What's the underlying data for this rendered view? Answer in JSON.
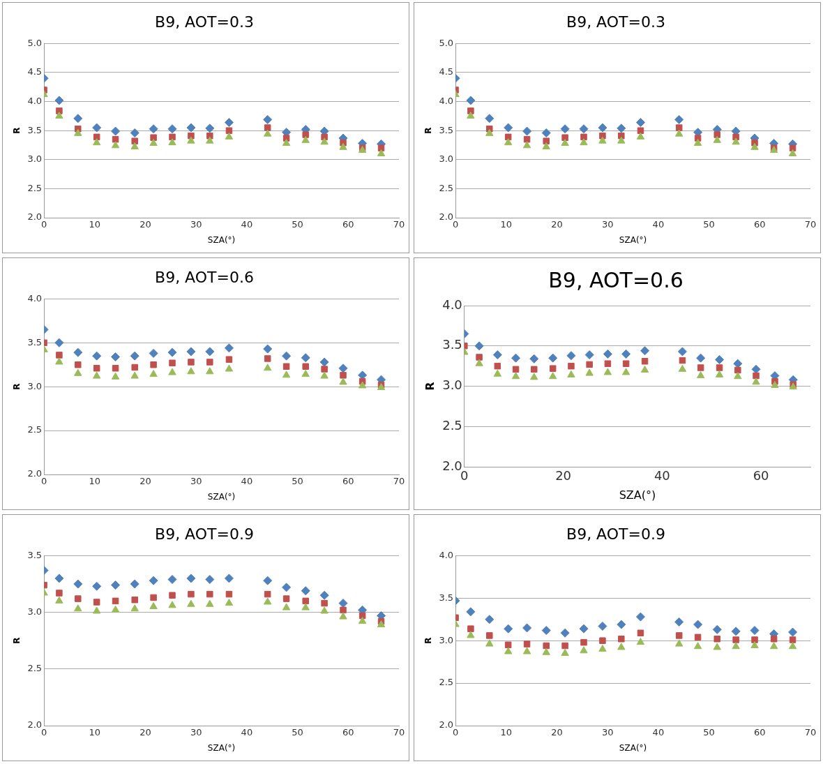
{
  "chart_data": [
    {
      "type": "scatter",
      "title": "B9, AOT=0.3",
      "xlabel": "SZA(°)",
      "ylabel": "R",
      "x": [
        0,
        3,
        6.7,
        10.4,
        14.1,
        17.9,
        21.6,
        25.3,
        29,
        32.7,
        36.5,
        44.1,
        47.8,
        51.6,
        55.3,
        59,
        62.8,
        66.5
      ],
      "xlim": [
        0,
        70
      ],
      "xticks": [
        0,
        10,
        20,
        30,
        40,
        50,
        60,
        70
      ],
      "ylim": [
        2,
        5
      ],
      "yticks": [
        {
          "value": 2,
          "label": "2.0"
        },
        {
          "value": 2.5,
          "label": "2.5"
        },
        {
          "value": 3,
          "label": "3.0"
        },
        {
          "value": 3.5,
          "label": "3.5"
        },
        {
          "value": 4,
          "label": "4.0"
        },
        {
          "value": 4.5,
          "label": "4.5"
        },
        {
          "value": 5,
          "label": "5.0"
        }
      ],
      "grid": "y",
      "legend": false,
      "series": [
        {
          "color": "#4f81bd",
          "marker": "diamond",
          "values": [
            4.4,
            4.02,
            3.71,
            3.55,
            3.49,
            3.46,
            3.53,
            3.53,
            3.55,
            3.54,
            3.64,
            3.69,
            3.47,
            3.52,
            3.49,
            3.37,
            3.28,
            3.27
          ]
        },
        {
          "color": "#c0504d",
          "marker": "square",
          "values": [
            4.2,
            3.84,
            3.53,
            3.39,
            3.35,
            3.32,
            3.38,
            3.39,
            3.41,
            3.41,
            3.5,
            3.55,
            3.37,
            3.43,
            3.39,
            3.29,
            3.2,
            3.2
          ]
        },
        {
          "color": "#9bbb59",
          "marker": "triangle",
          "values": [
            4.12,
            3.75,
            3.45,
            3.29,
            3.24,
            3.22,
            3.28,
            3.29,
            3.32,
            3.32,
            3.39,
            3.44,
            3.28,
            3.33,
            3.3,
            3.21,
            3.16,
            3.1
          ]
        }
      ]
    },
    {
      "type": "scatter",
      "title": "B9, AOT=0.3",
      "xlabel": "SZA(°)",
      "ylabel": "R",
      "x": [
        0,
        3,
        6.7,
        10.4,
        14.1,
        17.9,
        21.6,
        25.3,
        29,
        32.7,
        36.5,
        44.1,
        47.8,
        51.6,
        55.3,
        59,
        62.8,
        66.5
      ],
      "xlim": [
        0,
        70
      ],
      "xticks": [
        0,
        10,
        20,
        30,
        40,
        50,
        60,
        70
      ],
      "ylim": [
        2,
        5
      ],
      "yticks": [
        {
          "value": 2,
          "label": "2.0"
        },
        {
          "value": 2.5,
          "label": "2.5"
        },
        {
          "value": 3,
          "label": "3.0"
        },
        {
          "value": 3.5,
          "label": "3.5"
        },
        {
          "value": 4,
          "label": "4.0"
        },
        {
          "value": 4.5,
          "label": "4.5"
        },
        {
          "value": 5,
          "label": "5.0"
        }
      ],
      "grid": "y",
      "legend": false,
      "series": [
        {
          "color": "#4f81bd",
          "marker": "diamond",
          "values": [
            4.4,
            4.02,
            3.71,
            3.55,
            3.49,
            3.46,
            3.53,
            3.53,
            3.55,
            3.54,
            3.64,
            3.69,
            3.47,
            3.52,
            3.49,
            3.37,
            3.28,
            3.27
          ]
        },
        {
          "color": "#c0504d",
          "marker": "square",
          "values": [
            4.2,
            3.84,
            3.53,
            3.39,
            3.35,
            3.32,
            3.38,
            3.39,
            3.41,
            3.41,
            3.5,
            3.55,
            3.37,
            3.43,
            3.39,
            3.29,
            3.2,
            3.2
          ]
        },
        {
          "color": "#9bbb59",
          "marker": "triangle",
          "values": [
            4.12,
            3.75,
            3.45,
            3.29,
            3.24,
            3.22,
            3.28,
            3.29,
            3.32,
            3.32,
            3.39,
            3.44,
            3.28,
            3.33,
            3.3,
            3.21,
            3.16,
            3.1
          ]
        }
      ]
    },
    {
      "type": "scatter",
      "title": "B9, AOT=0.6",
      "xlabel": "SZA(°)",
      "ylabel": "R",
      "x": [
        0,
        3,
        6.7,
        10.4,
        14.1,
        17.9,
        21.6,
        25.3,
        29,
        32.7,
        36.5,
        44.1,
        47.8,
        51.6,
        55.3,
        59,
        62.8,
        66.5
      ],
      "xlim": [
        0,
        70
      ],
      "xticks": [
        0,
        10,
        20,
        30,
        40,
        50,
        60,
        70
      ],
      "ylim": [
        2,
        4
      ],
      "yticks": [
        {
          "value": 2,
          "label": "2.0"
        },
        {
          "value": 2.5,
          "label": "2.5"
        },
        {
          "value": 3,
          "label": "3.0"
        },
        {
          "value": 3.5,
          "label": "3.5"
        },
        {
          "value": 4,
          "label": "4.0"
        }
      ],
      "grid": "y",
      "legend": false,
      "series": [
        {
          "color": "#4f81bd",
          "marker": "diamond",
          "values": [
            3.65,
            3.5,
            3.39,
            3.35,
            3.34,
            3.35,
            3.38,
            3.39,
            3.4,
            3.4,
            3.44,
            3.43,
            3.35,
            3.33,
            3.28,
            3.21,
            3.13,
            3.08
          ]
        },
        {
          "color": "#c0504d",
          "marker": "square",
          "values": [
            3.5,
            3.36,
            3.25,
            3.21,
            3.21,
            3.22,
            3.25,
            3.27,
            3.28,
            3.28,
            3.31,
            3.32,
            3.23,
            3.23,
            3.2,
            3.13,
            3.06,
            3.02
          ]
        },
        {
          "color": "#9bbb59",
          "marker": "triangle",
          "values": [
            3.42,
            3.28,
            3.15,
            3.12,
            3.11,
            3.12,
            3.14,
            3.16,
            3.17,
            3.17,
            3.2,
            3.21,
            3.13,
            3.14,
            3.12,
            3.05,
            3.01,
            2.99
          ]
        }
      ]
    },
    {
      "type": "scatter",
      "title": "B9, AOT=0.6",
      "xlabel": "SZA(°)",
      "ylabel": "R",
      "x": [
        0,
        3,
        6.7,
        10.4,
        14.1,
        17.9,
        21.6,
        25.3,
        29,
        32.7,
        36.5,
        44.1,
        47.8,
        51.6,
        55.3,
        59,
        62.8,
        66.5
      ],
      "xlim": [
        0,
        70
      ],
      "xticks": [
        0,
        20,
        40,
        60
      ],
      "ylim": [
        2,
        4
      ],
      "yticks": [
        {
          "value": 2,
          "label": "2.0"
        },
        {
          "value": 2.5,
          "label": "2.5"
        },
        {
          "value": 3,
          "label": "3.0"
        },
        {
          "value": 3.5,
          "label": "3.5"
        },
        {
          "value": 4,
          "label": "4.0"
        }
      ],
      "grid": "y",
      "legend": false,
      "series": [
        {
          "color": "#4f81bd",
          "marker": "diamond",
          "values": [
            3.65,
            3.5,
            3.39,
            3.35,
            3.34,
            3.35,
            3.38,
            3.39,
            3.4,
            3.4,
            3.44,
            3.43,
            3.35,
            3.33,
            3.28,
            3.21,
            3.13,
            3.08
          ]
        },
        {
          "color": "#c0504d",
          "marker": "square",
          "values": [
            3.5,
            3.36,
            3.25,
            3.21,
            3.21,
            3.22,
            3.25,
            3.27,
            3.28,
            3.28,
            3.31,
            3.32,
            3.23,
            3.23,
            3.2,
            3.13,
            3.06,
            3.02
          ]
        },
        {
          "color": "#9bbb59",
          "marker": "triangle",
          "values": [
            3.42,
            3.28,
            3.15,
            3.12,
            3.11,
            3.12,
            3.14,
            3.16,
            3.17,
            3.17,
            3.2,
            3.21,
            3.13,
            3.14,
            3.12,
            3.05,
            3.01,
            2.99
          ]
        }
      ]
    },
    {
      "type": "scatter",
      "title": "B9, AOT=0.9",
      "xlabel": "SZA(°)",
      "ylabel": "R",
      "x": [
        0,
        3,
        6.7,
        10.4,
        14.1,
        17.9,
        21.6,
        25.3,
        29,
        32.7,
        36.5,
        44.1,
        47.8,
        51.6,
        55.3,
        59,
        62.8,
        66.5
      ],
      "xlim": [
        0,
        70
      ],
      "xticks": [
        0,
        10,
        20,
        30,
        40,
        50,
        60,
        70
      ],
      "ylim": [
        2,
        3.5
      ],
      "yticks": [
        {
          "value": 2,
          "label": "2.0"
        },
        {
          "value": 2.5,
          "label": "2.5"
        },
        {
          "value": 3,
          "label": "3.0"
        },
        {
          "value": 3.5,
          "label": "3.5"
        }
      ],
      "grid": "y",
      "legend": false,
      "series": [
        {
          "color": "#4f81bd",
          "marker": "diamond",
          "values": [
            3.37,
            3.3,
            3.25,
            3.23,
            3.24,
            3.25,
            3.28,
            3.29,
            3.3,
            3.29,
            3.3,
            3.28,
            3.22,
            3.19,
            3.15,
            3.08,
            3.02,
            2.97
          ]
        },
        {
          "color": "#c0504d",
          "marker": "square",
          "values": [
            3.24,
            3.17,
            3.12,
            3.09,
            3.1,
            3.11,
            3.13,
            3.15,
            3.16,
            3.16,
            3.16,
            3.16,
            3.12,
            3.1,
            3.08,
            3.02,
            2.97,
            2.92
          ]
        },
        {
          "color": "#9bbb59",
          "marker": "triangle",
          "values": [
            3.17,
            3.1,
            3.03,
            3.01,
            3.02,
            3.03,
            3.05,
            3.06,
            3.07,
            3.07,
            3.08,
            3.09,
            3.04,
            3.04,
            3.01,
            2.96,
            2.92,
            2.89
          ]
        }
      ]
    },
    {
      "type": "scatter",
      "title": "B9, AOT=0.9",
      "xlabel": "SZA(°)",
      "ylabel": "R",
      "x": [
        0,
        3,
        6.7,
        10.4,
        14.1,
        17.9,
        21.6,
        25.3,
        29,
        32.7,
        36.5,
        44.1,
        47.8,
        51.6,
        55.3,
        59,
        62.8,
        66.5
      ],
      "xlim": [
        0,
        70
      ],
      "xticks": [
        0,
        10,
        20,
        30,
        40,
        50,
        60,
        70
      ],
      "ylim": [
        2,
        4
      ],
      "yticks": [
        {
          "value": 2,
          "label": "2.0"
        },
        {
          "value": 2.5,
          "label": "2.5"
        },
        {
          "value": 3,
          "label": "3.0"
        },
        {
          "value": 3.5,
          "label": "3.5"
        },
        {
          "value": 4,
          "label": "4.0"
        }
      ],
      "grid": "y",
      "legend": false,
      "series": [
        {
          "color": "#4f81bd",
          "marker": "diamond",
          "values": [
            3.47,
            3.34,
            3.25,
            3.14,
            3.15,
            3.12,
            3.09,
            3.14,
            3.17,
            3.19,
            3.28,
            3.22,
            3.19,
            3.13,
            3.11,
            3.12,
            3.08,
            3.1
          ]
        },
        {
          "color": "#c0504d",
          "marker": "square",
          "values": [
            3.27,
            3.14,
            3.06,
            2.95,
            2.96,
            2.94,
            2.94,
            2.98,
            3.0,
            3.02,
            3.09,
            3.06,
            3.04,
            3.02,
            3.01,
            3.01,
            3.02,
            3.01
          ]
        },
        {
          "color": "#9bbb59",
          "marker": "triangle",
          "values": [
            3.19,
            3.06,
            2.96,
            2.87,
            2.87,
            2.86,
            2.85,
            2.88,
            2.9,
            2.92,
            2.98,
            2.96,
            2.93,
            2.92,
            2.93,
            2.94,
            2.93,
            2.93
          ]
        }
      ]
    }
  ]
}
